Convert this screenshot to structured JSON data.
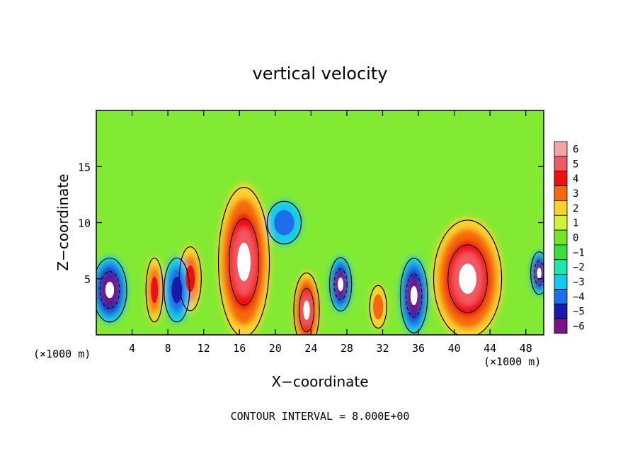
{
  "chart_data": {
    "type": "heatmap",
    "title": "vertical velocity",
    "xlabel": "X−coordinate",
    "ylabel": "Z−coordinate",
    "x_unit_left": "(×1000 m)",
    "x_unit_right": "(×1000 m)",
    "footer": "CONTOUR INTERVAL = 8.000E+00",
    "xlim": [
      0,
      50
    ],
    "ylim": [
      0,
      20
    ],
    "x_ticks": [
      4,
      8,
      12,
      16,
      20,
      24,
      28,
      32,
      36,
      40,
      44,
      48
    ],
    "y_ticks": [
      5,
      10,
      15
    ],
    "colorbar": {
      "levels": [
        6,
        5,
        4,
        3,
        2,
        1,
        0,
        -1,
        -2,
        -3,
        -4,
        -5,
        -6
      ],
      "level_labels": [
        "6",
        "5",
        "4",
        "3",
        "2",
        "1",
        "0",
        "−1",
        "−2",
        "−3",
        "−4",
        "−5",
        "−6"
      ],
      "colors": [
        "#f4a3a8",
        "#f25a63",
        "#ee1010",
        "#f56a10",
        "#fbd22d",
        "#d2f23a",
        "#73e62a",
        "#37e03a",
        "#20e7a6",
        "#14c9ec",
        "#1d6ee9",
        "#1a1aa8",
        "#7c128a"
      ],
      "background": "#83ea34"
    },
    "updraft_cells": [
      {
        "x": 16.5,
        "z": 6.5,
        "w": 3,
        "h": 7,
        "peak": 8
      },
      {
        "x": 41.5,
        "z": 5,
        "w": 4,
        "h": 5.5,
        "peak": 8
      },
      {
        "x": 23.5,
        "z": 2.2,
        "w": 1.5,
        "h": 3.5,
        "peak": 7
      },
      {
        "x": 6.5,
        "z": 4,
        "w": 1,
        "h": 3,
        "peak": 4
      },
      {
        "x": 10.5,
        "z": 5,
        "w": 1.3,
        "h": 3,
        "peak": 4
      },
      {
        "x": 31.5,
        "z": 2.5,
        "w": 1,
        "h": 2,
        "peak": 3
      }
    ],
    "downdraft_cells": [
      {
        "x": 1.5,
        "z": 4,
        "w": 2,
        "h": 3,
        "peak": -8
      },
      {
        "x": 35.5,
        "z": 3.5,
        "w": 1.6,
        "h": 3.5,
        "peak": -8
      },
      {
        "x": 27.3,
        "z": 4.5,
        "w": 1.3,
        "h": 2.5,
        "peak": -7
      },
      {
        "x": 49.5,
        "z": 5.5,
        "w": 1,
        "h": 2,
        "peak": -7
      },
      {
        "x": 9,
        "z": 4,
        "w": 1.5,
        "h": 3,
        "peak": -5
      },
      {
        "x": 21,
        "z": 10,
        "w": 2,
        "h": 2,
        "peak": -4
      }
    ]
  }
}
